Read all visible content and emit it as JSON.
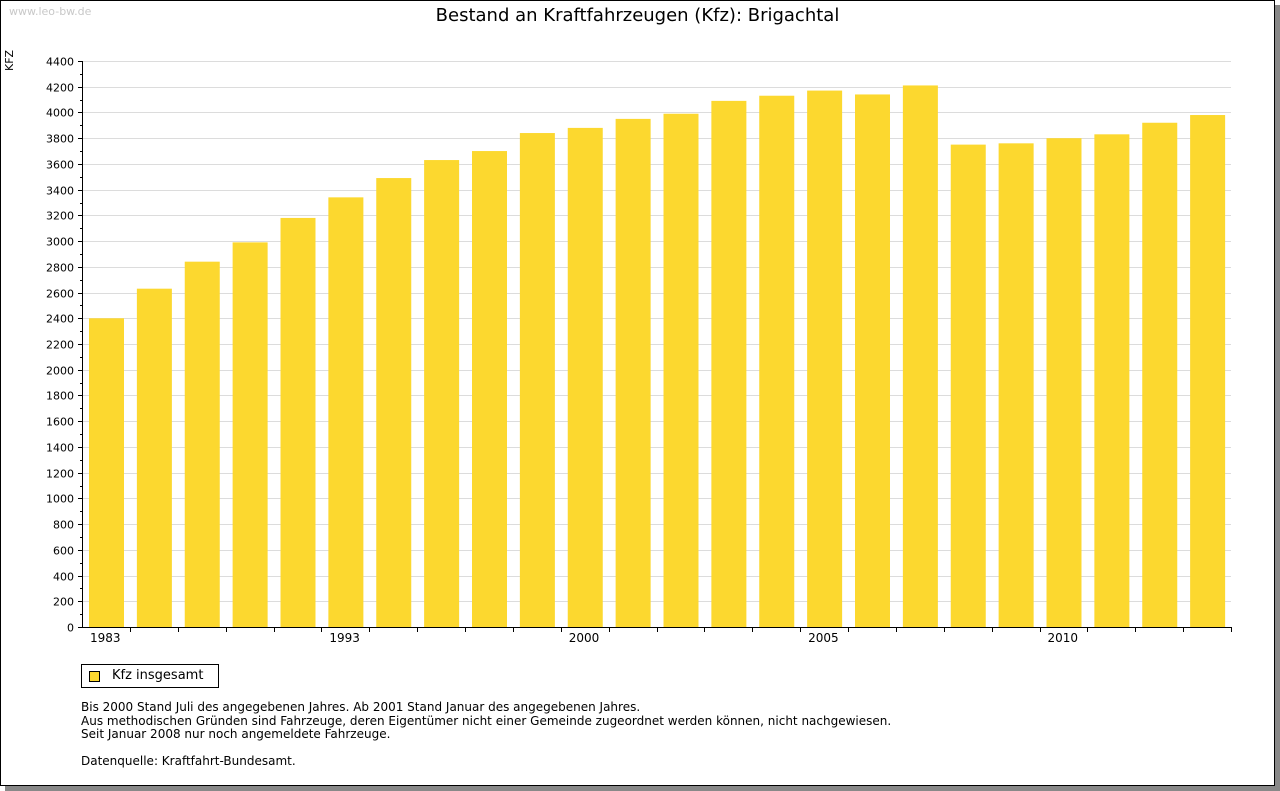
{
  "watermark": "www.leo-bw.de",
  "chart_data": {
    "type": "bar",
    "title": "Bestand an Kraftfahrzeugen (Kfz): Brigachtal",
    "xlabel": "",
    "ylabel": "KFZ",
    "ylim": [
      0,
      4400
    ],
    "yticks": [
      0,
      200,
      400,
      600,
      800,
      1000,
      1200,
      1400,
      1600,
      1800,
      2000,
      2200,
      2400,
      2600,
      2800,
      3000,
      3200,
      3400,
      3600,
      3800,
      4000,
      4200,
      4400
    ],
    "grid": true,
    "x_tick_labels": [
      "1983",
      "",
      "",
      "",
      "",
      "1993",
      "",
      "",
      "",
      "",
      "2000",
      "",
      "",
      "",
      "",
      "2005",
      "",
      "",
      "",
      "",
      "2010",
      "",
      "",
      ""
    ],
    "series": [
      {
        "name": "Kfz insgesamt",
        "color": "#fcd82f",
        "values": [
          2400,
          2630,
          2840,
          2990,
          3180,
          3340,
          3490,
          3630,
          3700,
          3840,
          3880,
          3950,
          3990,
          4090,
          4130,
          4170,
          4140,
          4210,
          3750,
          3760,
          3800,
          3830,
          3920,
          3980
        ]
      }
    ],
    "legend_position": "bottom-left"
  },
  "notes": [
    "Bis 2000 Stand Juli des angegebenen Jahres. Ab 2001 Stand Januar des angegebenen Jahres.",
    "Aus methodischen Gründen sind Fahrzeuge, deren Eigentümer nicht einer Gemeinde zugeordnet werden können, nicht nachgewiesen.",
    "Seit Januar 2008 nur noch angemeldete Fahrzeuge."
  ],
  "source": "Datenquelle: Kraftfahrt-Bundesamt."
}
